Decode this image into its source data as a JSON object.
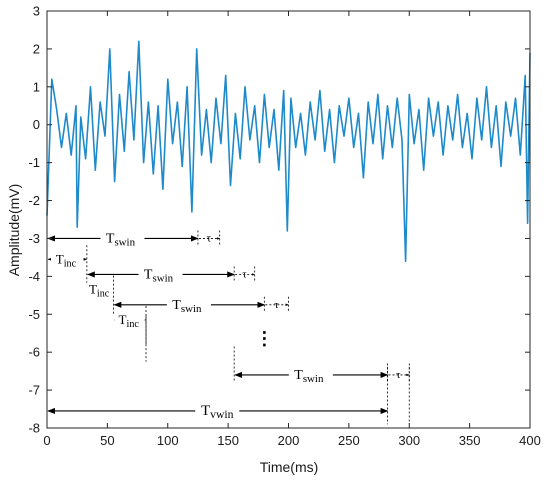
{
  "chart_data": {
    "type": "line",
    "title": "",
    "xlabel": "Time(ms)",
    "ylabel": "Amplitude(mV)",
    "xlim": [
      0,
      400
    ],
    "ylim": [
      -8,
      3
    ],
    "x_ticks": [
      0,
      50,
      100,
      150,
      200,
      250,
      300,
      350,
      400
    ],
    "y_ticks": [
      3,
      2,
      1,
      0,
      -1,
      -2,
      -3,
      -4,
      -5,
      -6,
      -7,
      -8
    ],
    "grid": false,
    "legend": "none",
    "colors": {
      "signal": "#1f8ac9",
      "annotation": "#000000"
    },
    "series": [
      {
        "x": [
          0,
          4,
          8,
          12,
          16,
          20,
          24,
          25,
          28,
          32,
          36,
          40,
          44,
          48,
          52,
          56,
          60,
          64,
          68,
          72,
          76,
          80,
          84,
          88,
          92,
          96,
          100,
          104,
          108,
          112,
          116,
          120,
          124,
          128,
          132,
          136,
          140,
          144,
          148,
          152,
          156,
          160,
          164,
          168,
          172,
          176,
          180,
          184,
          188,
          192,
          196,
          199,
          202,
          206,
          210,
          214,
          218,
          222,
          226,
          230,
          234,
          238,
          242,
          246,
          250,
          254,
          258,
          262,
          266,
          270,
          274,
          278,
          282,
          286,
          290,
          294,
          297,
          300,
          304,
          308,
          312,
          316,
          320,
          324,
          328,
          332,
          336,
          340,
          344,
          348,
          352,
          356,
          360,
          364,
          368,
          372,
          376,
          380,
          384,
          388,
          392,
          396,
          398,
          400
        ],
        "y": [
          -2.4,
          1.2,
          0.4,
          -0.6,
          0.3,
          -0.8,
          0.5,
          -2.7,
          0.2,
          -0.9,
          1.0,
          -1.2,
          0.6,
          -0.3,
          2.0,
          -1.5,
          0.8,
          -0.7,
          1.4,
          -0.4,
          2.2,
          -1.0,
          0.6,
          -1.3,
          0.5,
          -1.7,
          1.2,
          -0.5,
          0.6,
          -1.1,
          1.0,
          -2.3,
          2.0,
          -0.8,
          0.4,
          -1.0,
          0.7,
          -0.5,
          1.3,
          -1.6,
          0.3,
          -0.9,
          1.0,
          -0.4,
          0.5,
          -1.0,
          0.8,
          -0.6,
          0.4,
          -1.2,
          0.9,
          -2.8,
          0.7,
          -0.6,
          0.3,
          -0.8,
          0.6,
          -0.4,
          0.9,
          -0.7,
          0.4,
          -1.0,
          0.5,
          -0.3,
          0.7,
          -0.6,
          0.3,
          -1.4,
          0.6,
          -0.5,
          0.8,
          -0.9,
          0.5,
          -0.6,
          0.7,
          -0.4,
          -3.6,
          0.8,
          -0.5,
          0.4,
          -1.2,
          0.7,
          -0.3,
          0.6,
          -0.8,
          0.5,
          -0.4,
          0.8,
          -0.6,
          0.3,
          -0.9,
          0.7,
          -0.4,
          1.0,
          -0.6,
          0.5,
          -1.1,
          0.6,
          -0.3,
          0.7,
          -0.8,
          1.3,
          -2.6,
          1.9
        ]
      }
    ],
    "annotations": {
      "windows": [
        {
          "label": "Tswin",
          "x_start": 0,
          "x_end": 125,
          "y": -3,
          "tau_label": "τ",
          "tau_end": 143
        },
        {
          "label": "Tswin",
          "x_start": 33,
          "x_end": 155,
          "y": -3.95,
          "tau_label": "τ",
          "tau_end": 172
        },
        {
          "label": "Tswin",
          "x_start": 55,
          "x_end": 180,
          "y": -4.75,
          "tau_label": "τ",
          "tau_end": 200
        },
        {
          "label": "Tswin",
          "x_start": 155,
          "x_end": 282,
          "y": -6.6,
          "tau_label": "τ",
          "tau_end": 300
        }
      ],
      "increments": [
        {
          "label": "Tinc",
          "x_start": 0,
          "x_end": 33,
          "y": -3.55
        },
        {
          "label": "Tinc",
          "x_start": 33,
          "x_end": 55,
          "y": -4.35
        },
        {
          "label": "Tinc",
          "x_start": 55,
          "x_end": 82,
          "y": -5.15
        }
      ],
      "vwin": {
        "label": "Tvwin",
        "x_start": 0,
        "x_end": 282,
        "y": -7.55
      },
      "ellipsis": "⋮"
    }
  }
}
